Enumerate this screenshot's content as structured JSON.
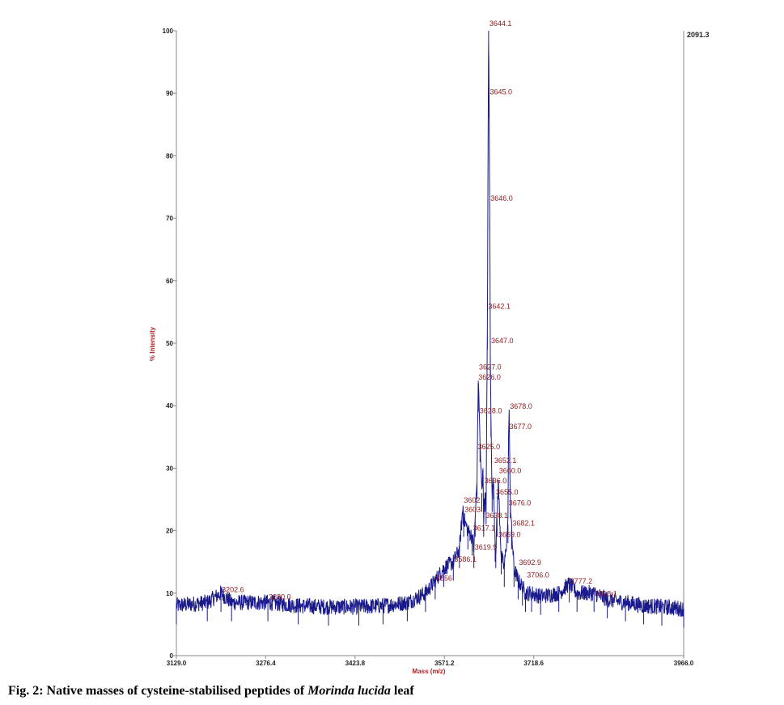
{
  "caption": {
    "prefix": "Fig. 2: Native masses of cysteine-stabilised peptides of",
    "species": "Morinda lucida",
    "suffix": "leaf"
  },
  "chart_data": {
    "type": "line",
    "xlabel": "Mass (m/z)",
    "ylabel": "% Intensity",
    "max_intensity_label": "2091.3",
    "xlim": [
      3129.0,
      3966.0
    ],
    "ylim": [
      0,
      100
    ],
    "x_ticks": [
      "3129.0",
      "3276.4",
      "3423.8",
      "3571.2",
      "3718.6",
      "3966.0"
    ],
    "x_tick_values": [
      3129.0,
      3276.4,
      3423.8,
      3571.2,
      3718.6,
      3966.0
    ],
    "y_ticks": [
      0,
      10,
      20,
      30,
      40,
      50,
      60,
      70,
      80,
      90,
      100
    ],
    "series": [
      {
        "color": "#1a1a8c",
        "x": [
          3129,
          3180,
          3202.6,
          3220,
          3280,
          3330,
          3380,
          3430,
          3470,
          3510,
          3540,
          3556,
          3570,
          3586,
          3596,
          3602,
          3603,
          3610,
          3617,
          3619.9,
          3622,
          3625,
          3627,
          3628,
          3630,
          3633,
          3635,
          3636,
          3638,
          3640,
          3642.1,
          3644.1,
          3645,
          3646,
          3647,
          3648,
          3650,
          3652,
          3655,
          3656,
          3658,
          3660,
          3665,
          3670,
          3676,
          3677,
          3678,
          3680,
          3682.1,
          3686,
          3692.9,
          3700,
          3705,
          3715,
          3730,
          3760,
          3777.2,
          3790,
          3818.1,
          3840,
          3870,
          3900,
          3930,
          3966
        ],
        "y": [
          8,
          8.5,
          10,
          8.5,
          8.5,
          8,
          7.8,
          7.8,
          8,
          8.5,
          10,
          12,
          14,
          15,
          17,
          24,
          22,
          20,
          19,
          17,
          22,
          28,
          44,
          42,
          34,
          26,
          30,
          22,
          26,
          24,
          52,
          100,
          89,
          71,
          48,
          38,
          26,
          28,
          18,
          17,
          22,
          28,
          16,
          14,
          21,
          35,
          39,
          25,
          20,
          14,
          12,
          11,
          10,
          10,
          9.5,
          10,
          11.5,
          10,
          10,
          9,
          8.5,
          8,
          7.8,
          7.5
        ]
      }
    ],
    "peak_labels": [
      {
        "x": 3202.6,
        "y": 10.2,
        "label": "3202.6"
      },
      {
        "x": 3280.0,
        "y": 9.0,
        "label": "3280.0"
      },
      {
        "x": 3556.0,
        "y": 12.0,
        "label": "3556"
      },
      {
        "x": 3586.0,
        "y": 15.0,
        "label": "3586.1"
      },
      {
        "x": 3602.0,
        "y": 24.5,
        "label": "3602"
      },
      {
        "x": 3603.0,
        "y": 23.0,
        "label": "3603"
      },
      {
        "x": 3617.0,
        "y": 20.0,
        "label": "3617.1"
      },
      {
        "x": 3619.9,
        "y": 17.0,
        "label": "3619.9"
      },
      {
        "x": 3625.0,
        "y": 33.0,
        "label": "3625.0"
      },
      {
        "x": 3626.0,
        "y": 44.2,
        "label": "3626.0"
      },
      {
        "x": 3627.0,
        "y": 45.8,
        "label": "3627.0"
      },
      {
        "x": 3628.0,
        "y": 38.8,
        "label": "3628.0"
      },
      {
        "x": 3636.0,
        "y": 27.6,
        "label": "3636.0"
      },
      {
        "x": 3638.1,
        "y": 22.0,
        "label": "3638.1"
      },
      {
        "x": 3642.1,
        "y": 55.5,
        "label": "3642.1"
      },
      {
        "x": 3644.1,
        "y": 100.8,
        "label": "3644.1"
      },
      {
        "x": 3645.0,
        "y": 89.8,
        "label": "3645.0"
      },
      {
        "x": 3646.0,
        "y": 72.8,
        "label": "3646.0"
      },
      {
        "x": 3647.0,
        "y": 50.0,
        "label": "3647.0"
      },
      {
        "x": 3652.1,
        "y": 30.8,
        "label": "3652.1"
      },
      {
        "x": 3655.0,
        "y": 25.8,
        "label": "3655.0"
      },
      {
        "x": 3659.0,
        "y": 19.0,
        "label": "3659.0"
      },
      {
        "x": 3660.0,
        "y": 29.2,
        "label": "3660.0"
      },
      {
        "x": 3676.0,
        "y": 24.0,
        "label": "3676.0"
      },
      {
        "x": 3677.0,
        "y": 36.3,
        "label": "3677.0"
      },
      {
        "x": 3678.0,
        "y": 39.5,
        "label": "3678.0"
      },
      {
        "x": 3682.1,
        "y": 20.8,
        "label": "3682.1"
      },
      {
        "x": 3692.9,
        "y": 14.5,
        "label": "3692.9"
      },
      {
        "x": 3706.0,
        "y": 12.5,
        "label": "3706.0"
      },
      {
        "x": 3777.2,
        "y": 11.5,
        "label": "3777.2"
      },
      {
        "x": 3818.1,
        "y": 9.5,
        "label": "3818.1"
      }
    ]
  }
}
